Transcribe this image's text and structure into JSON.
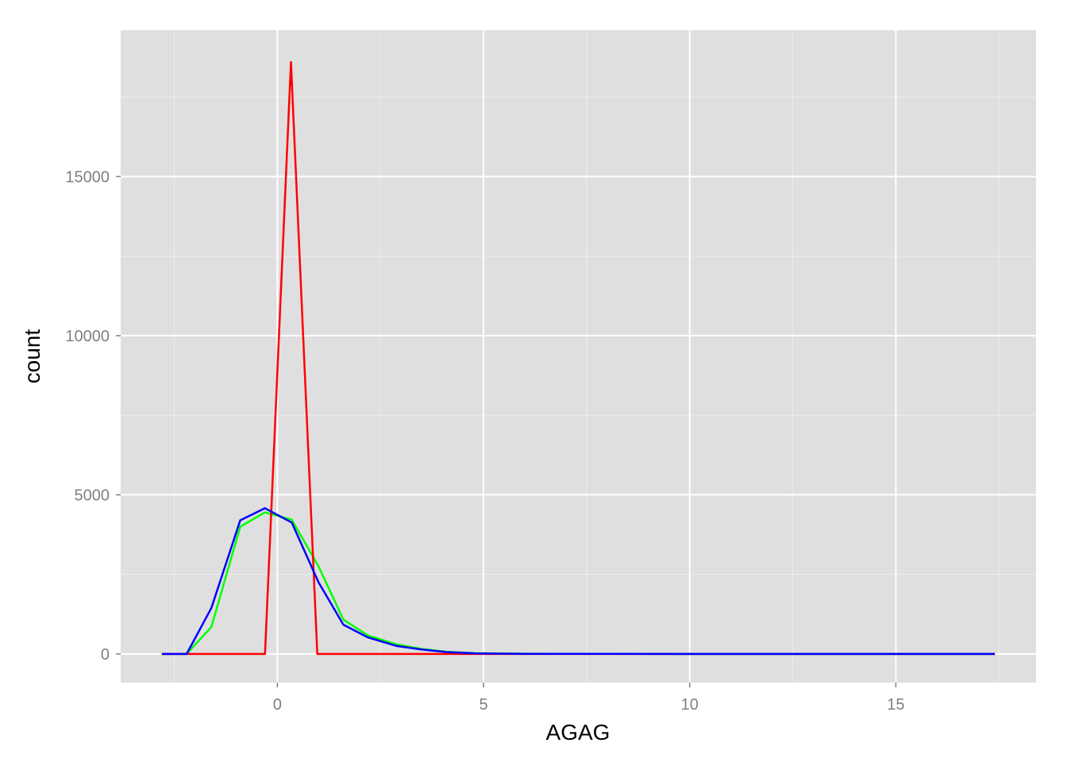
{
  "chart_data": {
    "type": "line",
    "title": "",
    "xlabel": "AGAG",
    "ylabel": "count",
    "xlim": [
      -3.8,
      18.4
    ],
    "ylim": [
      -900,
      19600
    ],
    "x_ticks": [
      0,
      5,
      10,
      15
    ],
    "y_ticks": [
      0,
      5000,
      10000,
      15000
    ],
    "x_tick_labels": [
      "0",
      "5",
      "10",
      "15"
    ],
    "y_tick_labels": [
      "0",
      "5000",
      "10000",
      "15000"
    ],
    "grid": true,
    "panel_background": "#dfdfdf",
    "grid_color": "#ffffff",
    "series": [
      {
        "color": "#00ff00",
        "x": [
          -2.8,
          -2.2,
          -1.6,
          -0.9,
          -0.3,
          0.35,
          1.0,
          1.6,
          2.2,
          2.9,
          3.5,
          4.1,
          4.8,
          6.0,
          8.0,
          10.0,
          12.0,
          14.0,
          16.0,
          17.4
        ],
        "y": [
          0,
          0,
          850,
          4000,
          4450,
          4220,
          2750,
          1080,
          580,
          300,
          160,
          70,
          25,
          8,
          3,
          1,
          0,
          0,
          0,
          0
        ]
      },
      {
        "color": "#ff0000",
        "x": [
          -2.8,
          -0.3,
          0.33,
          0.97,
          4.8,
          10.0,
          17.4
        ],
        "y": [
          0,
          0,
          18600,
          0,
          0,
          0,
          0
        ]
      },
      {
        "color": "#0000ff",
        "x": [
          -2.8,
          -2.2,
          -1.6,
          -0.9,
          -0.3,
          0.35,
          1.0,
          1.6,
          2.2,
          2.9,
          3.5,
          4.1,
          4.8,
          6.0,
          8.0,
          10.0,
          12.0,
          14.0,
          16.0,
          17.4
        ],
        "y": [
          0,
          0,
          1450,
          4200,
          4580,
          4130,
          2250,
          920,
          520,
          250,
          140,
          60,
          20,
          6,
          2,
          1,
          0,
          0,
          0,
          0
        ]
      }
    ]
  }
}
